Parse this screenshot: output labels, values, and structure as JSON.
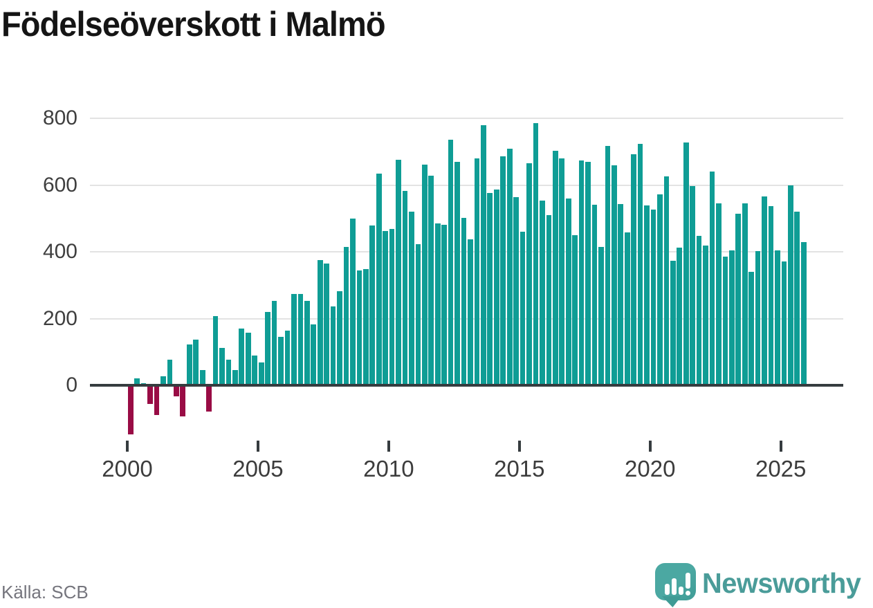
{
  "title": "Födelseöverskott i Malmö",
  "source": "Källa: SCB",
  "branding": {
    "name": "Newsworthy",
    "icon": "speech-bubble-barchart-icon"
  },
  "colors": {
    "bar_positive": "#0f9d95",
    "bar_negative": "#990c45",
    "axis_line": "#363c3f",
    "gridline": "#e3e3e3",
    "tick_label": "#3c3c3c",
    "title_text": "#151515",
    "source_text": "#75757d",
    "brand_teal": "#4a9c99"
  },
  "chart_data": {
    "type": "bar",
    "title": "Födelseöverskott i Malmö",
    "xlabel": "",
    "ylabel": "",
    "frequency": "quarterly",
    "x_start": "2000Q1",
    "x_end": "2025Q4",
    "ylim": [
      -200,
      800
    ],
    "grid": "horizontal",
    "legend": "none",
    "y_tick_labels": [
      "0",
      "200",
      "400",
      "600",
      "800"
    ],
    "y_ticks": [
      0,
      200,
      400,
      600,
      800
    ],
    "x_tick_labels": [
      "2000",
      "2005",
      "2010",
      "2015",
      "2020",
      "2025"
    ],
    "x_tick_years": [
      2000,
      2005,
      2010,
      2015,
      2020,
      2025
    ],
    "series": [
      {
        "name": "Födelseöverskott",
        "values": [
          -148,
          20,
          6,
          -55,
          -90,
          26,
          76,
          -33,
          -93,
          122,
          137,
          46,
          -79,
          208,
          112,
          77,
          46,
          170,
          158,
          90,
          68,
          220,
          252,
          145,
          163,
          274,
          274,
          252,
          182,
          375,
          364,
          236,
          281,
          415,
          499,
          345,
          349,
          479,
          634,
          462,
          469,
          677,
          583,
          521,
          423,
          662,
          628,
          486,
          481,
          736,
          670,
          502,
          438,
          681,
          779,
          576,
          586,
          686,
          710,
          565,
          460,
          666,
          786,
          554,
          510,
          702,
          681,
          560,
          450,
          673,
          670,
          541,
          414,
          717,
          660,
          543,
          459,
          692,
          724,
          539,
          526,
          572,
          626,
          374,
          412,
          727,
          597,
          447,
          419,
          640,
          545,
          386,
          405,
          515,
          545,
          340,
          403,
          567,
          537,
          405,
          372,
          600,
          520,
          430
        ]
      }
    ]
  }
}
